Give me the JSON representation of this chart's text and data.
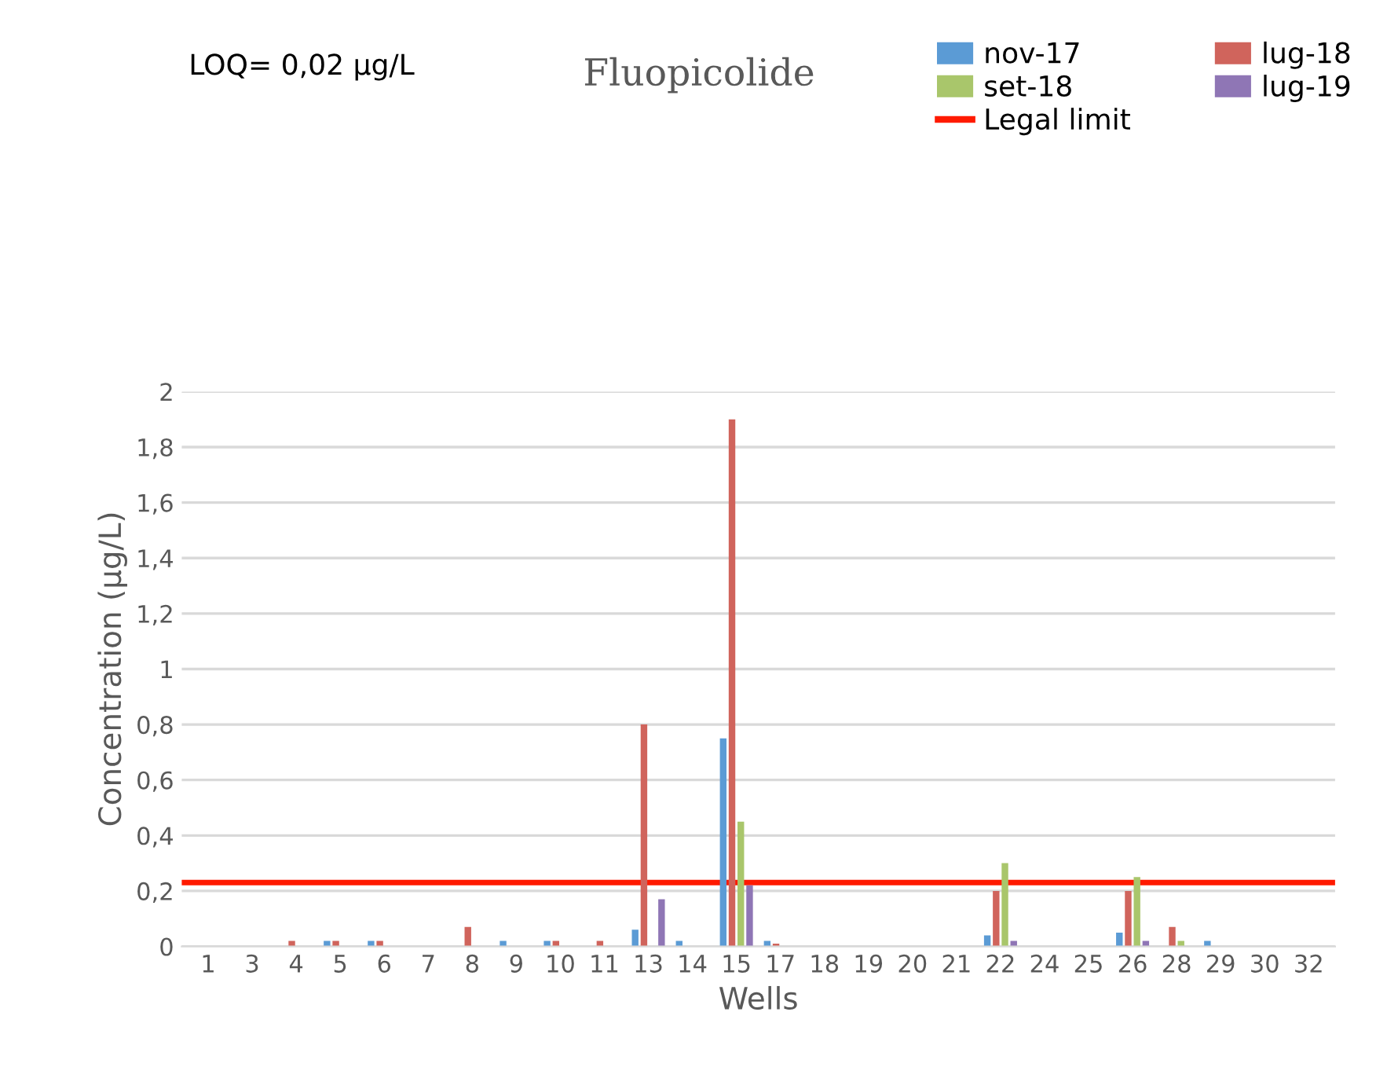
{
  "chart_data": {
    "type": "bar",
    "title": "Fluopicolide",
    "xlabel": "Wells",
    "ylabel": "Concentration (µg/L)",
    "annotations": [
      "LOQ= 0,02 µg/L"
    ],
    "categories": [
      "1",
      "3",
      "4",
      "5",
      "6",
      "7",
      "8",
      "9",
      "10",
      "11",
      "13",
      "14",
      "15",
      "17",
      "18",
      "19",
      "20",
      "21",
      "22",
      "24",
      "25",
      "26",
      "28",
      "29",
      "30",
      "32"
    ],
    "series": [
      {
        "name": "nov-17",
        "color": "#5b9bd5",
        "values": [
          0,
          0,
          0,
          0.02,
          0.02,
          0,
          0,
          0.02,
          0.02,
          0,
          0.06,
          0.02,
          0.75,
          0.02,
          0,
          0,
          0,
          0,
          0.04,
          0,
          0,
          0.05,
          0,
          0.02,
          0,
          0
        ]
      },
      {
        "name": "lug-18",
        "color": "#d0645c",
        "values": [
          0,
          0,
          0.02,
          0.02,
          0.02,
          0,
          0.07,
          0,
          0.02,
          0.02,
          0.8,
          0,
          1.9,
          0.01,
          0,
          0,
          0,
          0,
          0.2,
          0,
          0,
          0.2,
          0.07,
          0,
          0,
          0
        ]
      },
      {
        "name": "set-18",
        "color": "#a9c66b",
        "values": [
          0,
          0,
          0,
          0,
          0,
          0,
          0,
          0,
          0,
          0,
          0,
          0,
          0.45,
          0,
          0,
          0,
          0,
          0,
          0.3,
          0,
          0,
          0.25,
          0.02,
          0,
          0,
          0
        ]
      },
      {
        "name": "lug-19",
        "color": "#8f76b5",
        "values": [
          0,
          0,
          0,
          0,
          0,
          0,
          0,
          0,
          0,
          0,
          0.17,
          0,
          0.22,
          0,
          0,
          0,
          0,
          0,
          0.02,
          0,
          0,
          0.02,
          0,
          0,
          0,
          0
        ]
      }
    ],
    "ref_lines": [
      {
        "axis": "y",
        "value": 0.23,
        "label": "Legal limit",
        "color": "#ff1a00"
      }
    ],
    "ylim": [
      0,
      2
    ],
    "yticks": [
      0,
      {
        "value": 0.2,
        "label": "0,2"
      },
      {
        "value": 0.4,
        "label": "0,4"
      },
      {
        "value": 0.6,
        "label": "0,6"
      },
      {
        "value": 0.8,
        "label": "0,8"
      },
      1,
      {
        "value": 1.2,
        "label": "1,2"
      },
      {
        "value": 1.4,
        "label": "1,4"
      },
      {
        "value": 1.6,
        "label": "1,6"
      },
      {
        "value": 1.8,
        "label": "1,8"
      },
      2
    ],
    "grid": "y",
    "legend": "top right"
  }
}
